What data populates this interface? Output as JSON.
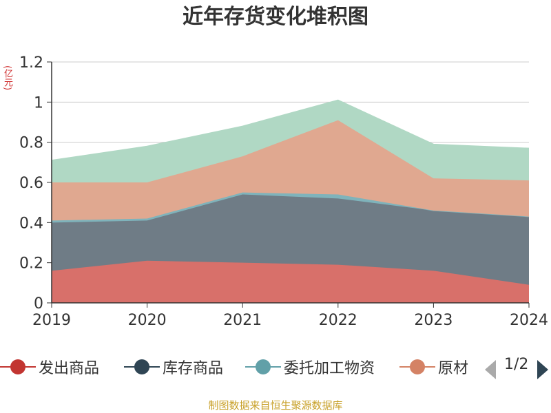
{
  "title": "近年存货变化堆积图",
  "unit_label": "(亿元)",
  "source": "制图数据来自恒生聚源数据库",
  "legend": {
    "items": [
      {
        "label": "发出商品",
        "color": "#c23531"
      },
      {
        "label": "库存商品",
        "color": "#2f4554"
      },
      {
        "label": "委托加工物资",
        "color": "#61a0a8"
      },
      {
        "label": "原材",
        "color": "#d48265"
      }
    ],
    "page_text": "1/2"
  },
  "chart_data": {
    "type": "area",
    "stacked": true,
    "title": "近年存货变化堆积图",
    "ylabel": "(亿元)",
    "x": [
      "2019",
      "2020",
      "2021",
      "2022",
      "2023",
      "2024"
    ],
    "ylim": [
      0,
      1.2
    ],
    "yticks": [
      "0",
      "0.2",
      "0.4",
      "0.6",
      "0.8",
      "1",
      "1.2"
    ],
    "grid": true,
    "legend_position": "bottom",
    "series": [
      {
        "values": [
          0.16,
          0.21,
          0.2,
          0.19,
          0.16,
          0.09
        ],
        "color": "#d8706a"
      },
      {
        "values": [
          0.24,
          0.2,
          0.34,
          0.33,
          0.3,
          0.34
        ],
        "color": "#6f7c86"
      },
      {
        "values": [
          0.01,
          0.01,
          0.01,
          0.02,
          0.0,
          0.0
        ],
        "color": "#7fb3bb"
      },
      {
        "values": [
          0.19,
          0.18,
          0.18,
          0.37,
          0.16,
          0.18
        ],
        "color": "#e0a890"
      },
      {
        "values": [
          0.11,
          0.18,
          0.15,
          0.1,
          0.17,
          0.16
        ],
        "color": "#b0d8c4"
      }
    ]
  }
}
